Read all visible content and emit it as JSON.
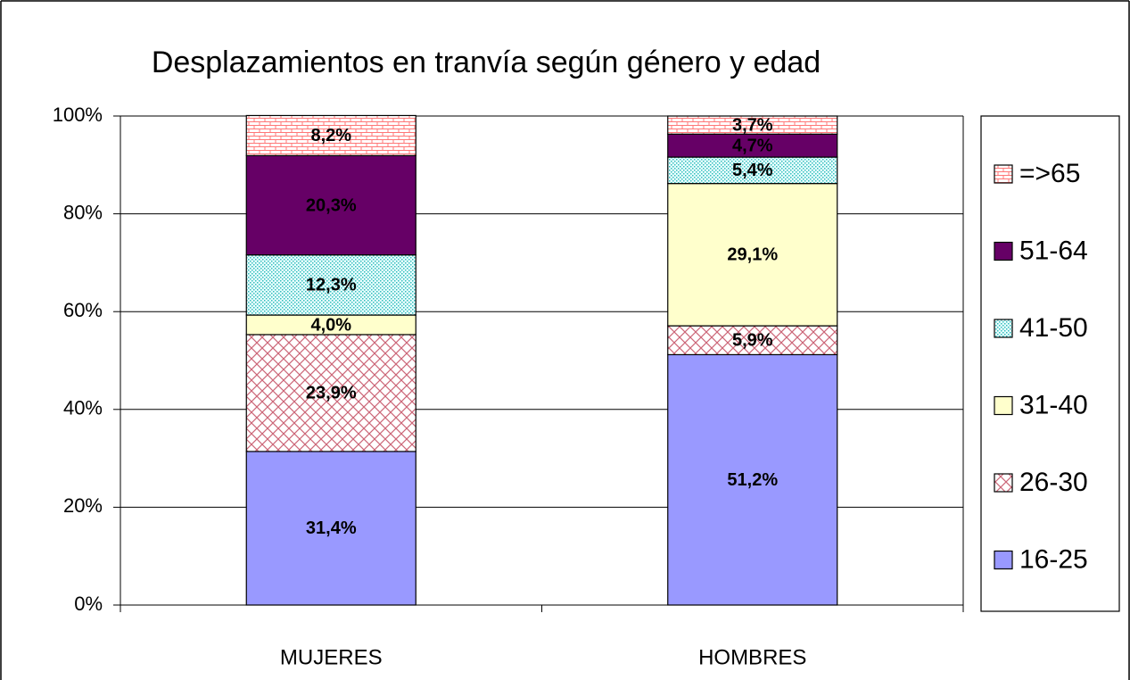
{
  "chart_data": {
    "type": "stacked_bar",
    "title": "Desplazamientos en tranvía según género y edad",
    "categories": [
      "MUJERES",
      "HOMBRES"
    ],
    "ylim": [
      0,
      100
    ],
    "yticks": [
      {
        "value": 0,
        "label": "0%"
      },
      {
        "value": 20,
        "label": "20%"
      },
      {
        "value": 40,
        "label": "40%"
      },
      {
        "value": 60,
        "label": "60%"
      },
      {
        "value": 80,
        "label": "80%"
      },
      {
        "value": 100,
        "label": "100%"
      }
    ],
    "grid": true,
    "legend": "right",
    "series": [
      {
        "name": "16-25",
        "color": "#9999ff",
        "pattern": "solid",
        "values": [
          31.4,
          51.2
        ],
        "value_labels": [
          "31,4%",
          "51,2%"
        ]
      },
      {
        "name": "26-30",
        "color": "#cc6677",
        "pattern": "crosshatch",
        "values": [
          23.9,
          5.9
        ],
        "value_labels": [
          "23,9%",
          "5,9%"
        ]
      },
      {
        "name": "31-40",
        "color": "#ffffcc",
        "pattern": "solid",
        "values": [
          4.0,
          29.1
        ],
        "value_labels": [
          "4,0%",
          "29,1%"
        ]
      },
      {
        "name": "41-50",
        "color": "#33bbbb",
        "pattern": "dots",
        "values": [
          12.3,
          5.4
        ],
        "value_labels": [
          "12,3%",
          "5,4%"
        ]
      },
      {
        "name": "51-64",
        "color": "#660066",
        "pattern": "solid",
        "values": [
          20.3,
          4.7
        ],
        "value_labels": [
          "20,3%",
          "4,7%"
        ]
      },
      {
        "name": "=>65",
        "color": "#ff7777",
        "pattern": "brick",
        "values": [
          8.2,
          3.7
        ],
        "value_labels": [
          "8,2%",
          "3,7%"
        ]
      }
    ]
  }
}
